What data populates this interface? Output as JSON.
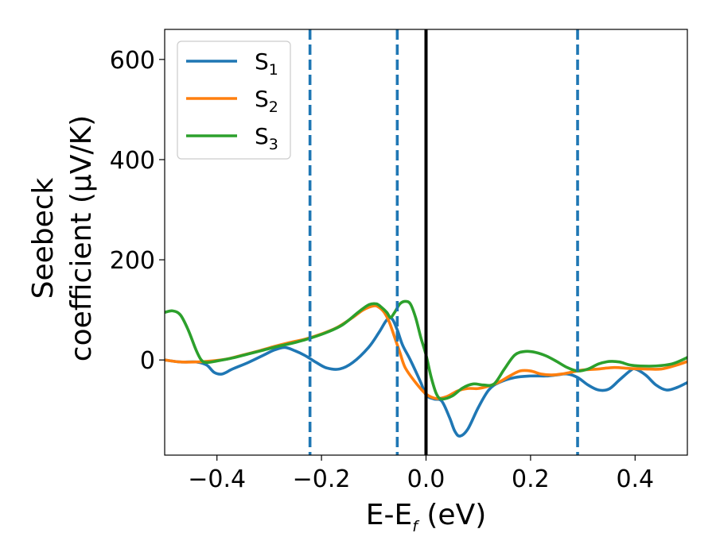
{
  "chart_data": {
    "type": "line",
    "title": "",
    "xlabel": {
      "main": "E-E",
      "sub": "f",
      "suffix": " (eV)"
    },
    "ylabel": [
      "Seebeck",
      "coefficient  (μV/K)"
    ],
    "xlim": [
      -0.5,
      0.5
    ],
    "ylim": [
      -190,
      660
    ],
    "xticks": [
      -0.4,
      -0.2,
      0.0,
      0.2,
      0.4
    ],
    "xtick_labels": [
      "−0.4",
      "−0.2",
      "0.0",
      "0.2",
      "0.4"
    ],
    "yticks": [
      0,
      200,
      400,
      600
    ],
    "ytick_labels": [
      "0",
      "200",
      "400",
      "600"
    ],
    "grid": false,
    "legend_position": "top-left",
    "colors": {
      "S1": "#1f77b4",
      "S2": "#ff7f0e",
      "S3": "#2ca02c",
      "fermi_line": "#000000",
      "dashed_lines": "#1f77b4"
    },
    "vertical_lines": [
      {
        "x": 0.0,
        "style": "solid",
        "color": "#000000"
      },
      {
        "x": -0.222,
        "style": "dashed",
        "color": "#1f77b4"
      },
      {
        "x": -0.055,
        "style": "dashed",
        "color": "#1f77b4"
      },
      {
        "x": 0.29,
        "style": "dashed",
        "color": "#1f77b4"
      }
    ],
    "series": [
      {
        "name": "S",
        "sub": "1",
        "color": "#1f77b4",
        "points": [
          [
            -0.5,
            0
          ],
          [
            -0.47,
            -4
          ],
          [
            -0.44,
            -4
          ],
          [
            -0.42,
            -10
          ],
          [
            -0.405,
            -25
          ],
          [
            -0.39,
            -28
          ],
          [
            -0.37,
            -18
          ],
          [
            -0.34,
            -5
          ],
          [
            -0.31,
            10
          ],
          [
            -0.29,
            20
          ],
          [
            -0.27,
            25
          ],
          [
            -0.25,
            18
          ],
          [
            -0.23,
            8
          ],
          [
            -0.21,
            -5
          ],
          [
            -0.19,
            -16
          ],
          [
            -0.165,
            -18
          ],
          [
            -0.14,
            -5
          ],
          [
            -0.11,
            25
          ],
          [
            -0.09,
            55
          ],
          [
            -0.075,
            80
          ],
          [
            -0.065,
            82
          ],
          [
            -0.055,
            60
          ],
          [
            -0.045,
            30
          ],
          [
            -0.03,
            0
          ],
          [
            -0.01,
            -45
          ],
          [
            0.0,
            -70
          ],
          [
            0.015,
            -78
          ],
          [
            0.03,
            -82
          ],
          [
            0.045,
            -115
          ],
          [
            0.055,
            -142
          ],
          [
            0.065,
            -152
          ],
          [
            0.08,
            -138
          ],
          [
            0.1,
            -95
          ],
          [
            0.12,
            -60
          ],
          [
            0.14,
            -45
          ],
          [
            0.17,
            -35
          ],
          [
            0.2,
            -32
          ],
          [
            0.23,
            -32
          ],
          [
            0.25,
            -30
          ],
          [
            0.27,
            -28
          ],
          [
            0.29,
            -35
          ],
          [
            0.31,
            -50
          ],
          [
            0.33,
            -60
          ],
          [
            0.35,
            -58
          ],
          [
            0.37,
            -40
          ],
          [
            0.39,
            -22
          ],
          [
            0.4,
            -18
          ],
          [
            0.42,
            -30
          ],
          [
            0.44,
            -50
          ],
          [
            0.46,
            -60
          ],
          [
            0.48,
            -55
          ],
          [
            0.5,
            -45
          ]
        ]
      },
      {
        "name": "S",
        "sub": "2",
        "color": "#ff7f0e",
        "points": [
          [
            -0.5,
            0
          ],
          [
            -0.47,
            -4
          ],
          [
            -0.44,
            -4
          ],
          [
            -0.41,
            -2
          ],
          [
            -0.38,
            2
          ],
          [
            -0.35,
            10
          ],
          [
            -0.32,
            18
          ],
          [
            -0.29,
            27
          ],
          [
            -0.26,
            35
          ],
          [
            -0.23,
            42
          ],
          [
            -0.2,
            52
          ],
          [
            -0.17,
            65
          ],
          [
            -0.14,
            85
          ],
          [
            -0.12,
            100
          ],
          [
            -0.1,
            108
          ],
          [
            -0.09,
            105
          ],
          [
            -0.08,
            95
          ],
          [
            -0.07,
            75
          ],
          [
            -0.06,
            45
          ],
          [
            -0.05,
            15
          ],
          [
            -0.04,
            -15
          ],
          [
            -0.02,
            -45
          ],
          [
            0.0,
            -68
          ],
          [
            0.02,
            -77
          ],
          [
            0.04,
            -73
          ],
          [
            0.06,
            -62
          ],
          [
            0.08,
            -57
          ],
          [
            0.1,
            -57
          ],
          [
            0.12,
            -52
          ],
          [
            0.14,
            -44
          ],
          [
            0.16,
            -32
          ],
          [
            0.18,
            -22
          ],
          [
            0.2,
            -22
          ],
          [
            0.22,
            -28
          ],
          [
            0.24,
            -30
          ],
          [
            0.26,
            -28
          ],
          [
            0.28,
            -24
          ],
          [
            0.3,
            -20
          ],
          [
            0.33,
            -18
          ],
          [
            0.36,
            -15
          ],
          [
            0.39,
            -17
          ],
          [
            0.42,
            -18
          ],
          [
            0.45,
            -18
          ],
          [
            0.48,
            -10
          ],
          [
            0.5,
            -3
          ]
        ]
      },
      {
        "name": "S",
        "sub": "3",
        "color": "#2ca02c",
        "points": [
          [
            -0.5,
            95
          ],
          [
            -0.485,
            98
          ],
          [
            -0.47,
            90
          ],
          [
            -0.455,
            60
          ],
          [
            -0.44,
            20
          ],
          [
            -0.43,
            0
          ],
          [
            -0.42,
            -5
          ],
          [
            -0.4,
            -2
          ],
          [
            -0.37,
            4
          ],
          [
            -0.34,
            12
          ],
          [
            -0.31,
            20
          ],
          [
            -0.28,
            28
          ],
          [
            -0.25,
            35
          ],
          [
            -0.22,
            44
          ],
          [
            -0.19,
            55
          ],
          [
            -0.16,
            70
          ],
          [
            -0.13,
            95
          ],
          [
            -0.11,
            110
          ],
          [
            -0.095,
            112
          ],
          [
            -0.085,
            105
          ],
          [
            -0.075,
            95
          ],
          [
            -0.068,
            85
          ],
          [
            -0.06,
            95
          ],
          [
            -0.05,
            112
          ],
          [
            -0.04,
            117
          ],
          [
            -0.03,
            112
          ],
          [
            -0.02,
            85
          ],
          [
            -0.01,
            45
          ],
          [
            0.0,
            10
          ],
          [
            0.01,
            -35
          ],
          [
            0.02,
            -68
          ],
          [
            0.03,
            -78
          ],
          [
            0.05,
            -72
          ],
          [
            0.07,
            -56
          ],
          [
            0.09,
            -48
          ],
          [
            0.11,
            -50
          ],
          [
            0.13,
            -48
          ],
          [
            0.15,
            -18
          ],
          [
            0.17,
            10
          ],
          [
            0.19,
            17
          ],
          [
            0.21,
            15
          ],
          [
            0.23,
            8
          ],
          [
            0.25,
            -3
          ],
          [
            0.27,
            -15
          ],
          [
            0.29,
            -22
          ],
          [
            0.31,
            -18
          ],
          [
            0.33,
            -8
          ],
          [
            0.35,
            -3
          ],
          [
            0.37,
            -4
          ],
          [
            0.39,
            -10
          ],
          [
            0.41,
            -12
          ],
          [
            0.44,
            -12
          ],
          [
            0.47,
            -8
          ],
          [
            0.49,
            0
          ],
          [
            0.5,
            5
          ]
        ]
      }
    ]
  }
}
